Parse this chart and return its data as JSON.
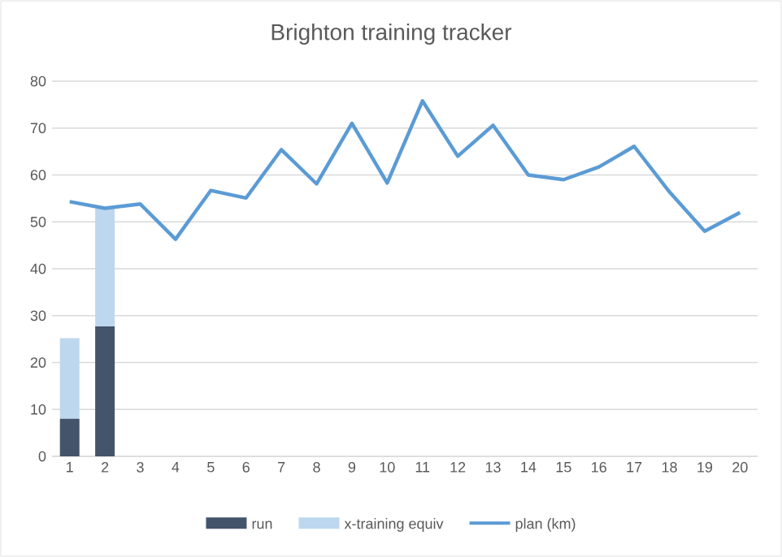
{
  "chart_data": {
    "type": "bar",
    "title": "Brighton training tracker",
    "stacked": true,
    "categories": [
      "1",
      "2",
      "3",
      "4",
      "5",
      "6",
      "7",
      "8",
      "9",
      "10",
      "11",
      "12",
      "13",
      "14",
      "15",
      "16",
      "17",
      "18",
      "19",
      "20"
    ],
    "series": [
      {
        "name": "run",
        "color": "#44546a",
        "values": [
          8,
          27.7,
          null,
          null,
          null,
          null,
          null,
          null,
          null,
          null,
          null,
          null,
          null,
          null,
          null,
          null,
          null,
          null,
          null,
          null
        ]
      },
      {
        "name": "x-training equiv",
        "color": "#bdd7ee",
        "values": [
          17.2,
          25.2,
          null,
          null,
          null,
          null,
          null,
          null,
          null,
          null,
          null,
          null,
          null,
          null,
          null,
          null,
          null,
          null,
          null,
          null
        ]
      },
      {
        "name": "plan (km)",
        "type": "line",
        "color": "#5b9bd5",
        "values": [
          54.3,
          52.9,
          53.8,
          46.3,
          56.7,
          55.1,
          65.4,
          58.1,
          71.0,
          58.3,
          75.8,
          64.0,
          70.6,
          60.0,
          59.0,
          61.7,
          66.1,
          56.4,
          48.0,
          52.0
        ]
      }
    ],
    "ylim": [
      0,
      80
    ],
    "yticks": [
      0,
      10,
      20,
      30,
      40,
      50,
      60,
      70,
      80
    ],
    "grid": "y",
    "legend": "bottom"
  }
}
